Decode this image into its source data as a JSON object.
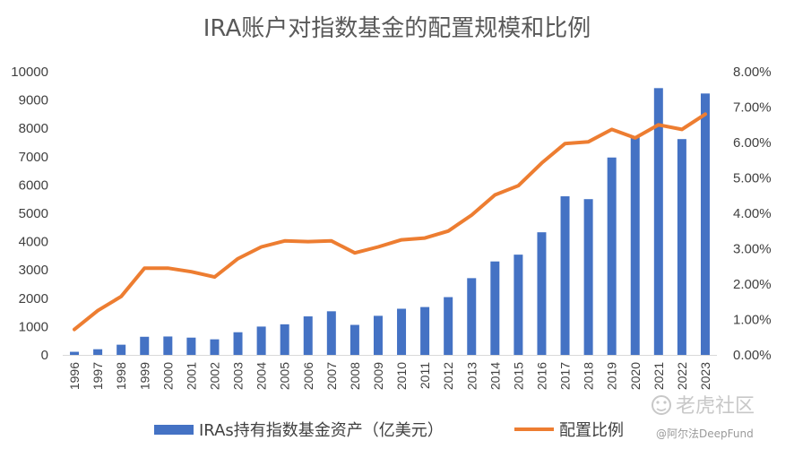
{
  "chart_data": {
    "type": "bar",
    "title": "IRA账户对指数基金的配置规模和比例",
    "categories": [
      "1996",
      "1997",
      "1998",
      "1999",
      "2000",
      "2001",
      "2002",
      "2003",
      "2004",
      "2005",
      "2006",
      "2007",
      "2008",
      "2009",
      "2010",
      "2011",
      "2012",
      "2013",
      "2014",
      "2015",
      "2016",
      "2017",
      "2018",
      "2019",
      "2020",
      "2021",
      "2022",
      "2023"
    ],
    "series": [
      {
        "name": "IRAs持有指数基金资产（亿美元）",
        "type": "bar",
        "axis": "left",
        "color": "#4472c4",
        "values": [
          110,
          200,
          360,
          640,
          650,
          610,
          550,
          800,
          1000,
          1080,
          1360,
          1540,
          1060,
          1380,
          1630,
          1690,
          2040,
          2710,
          3300,
          3540,
          4330,
          5600,
          5500,
          6970,
          7720,
          9420,
          7620,
          9230
        ]
      },
      {
        "name": "配置比例",
        "type": "line",
        "axis": "right",
        "color": "#ed7d31",
        "values": [
          0.72,
          1.25,
          1.65,
          2.45,
          2.45,
          2.35,
          2.2,
          2.72,
          3.05,
          3.22,
          3.2,
          3.22,
          2.88,
          3.05,
          3.25,
          3.3,
          3.5,
          3.95,
          4.52,
          4.78,
          5.42,
          5.97,
          6.02,
          6.37,
          6.13,
          6.5,
          6.37,
          6.8
        ]
      }
    ],
    "ylim_left": [
      0,
      10000
    ],
    "yticks_left": [
      "0",
      "1000",
      "2000",
      "3000",
      "4000",
      "5000",
      "6000",
      "7000",
      "8000",
      "9000",
      "10000"
    ],
    "ylim_right": [
      0,
      8
    ],
    "yticks_right": [
      "0.00%",
      "1.00%",
      "2.00%",
      "3.00%",
      "4.00%",
      "5.00%",
      "6.00%",
      "7.00%",
      "8.00%"
    ],
    "grid": false,
    "legend_position": "bottom"
  },
  "watermark": {
    "brand": "老虎社区",
    "handle": "@阿尔法DeepFund"
  }
}
